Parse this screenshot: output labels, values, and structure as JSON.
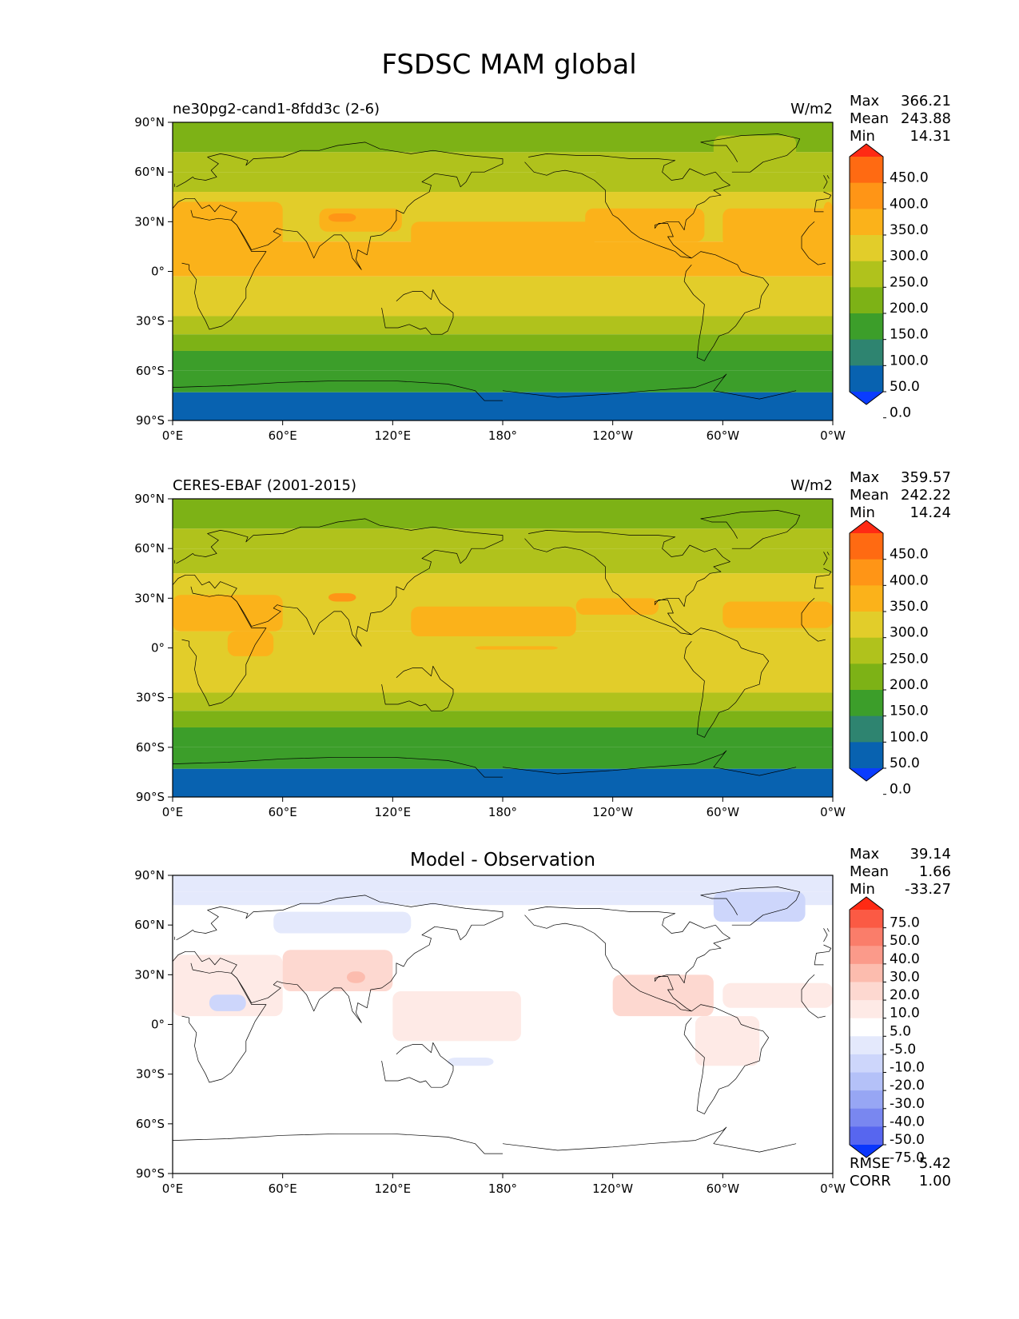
{
  "figure": {
    "title": "FSDSC MAM global"
  },
  "chart_data": [
    {
      "type": "heatmap",
      "title": "ne30pg2-cand1-8fdd3c (2-6)",
      "units": "W/m2",
      "stats": [
        {
          "label": "Max",
          "value": "366.21"
        },
        {
          "label": "Mean",
          "value": "243.88"
        },
        {
          "label": "Min",
          "value": "14.31"
        }
      ],
      "x_ticks": [
        "0°E",
        "60°E",
        "120°E",
        "180°",
        "120°W",
        "60°W",
        "0°W"
      ],
      "y_ticks": [
        "90°N",
        "60°N",
        "30°N",
        "0°",
        "30°S",
        "60°S",
        "90°S"
      ],
      "colorbar": {
        "levels": [
          "450.0",
          "400.0",
          "350.0",
          "300.0",
          "250.0",
          "200.0",
          "150.0",
          "100.0",
          "50.0",
          "0.0"
        ],
        "colors": [
          "#ff2a14",
          "#ff6a12",
          "#ff9516",
          "#fbb21a",
          "#e2cd2a",
          "#b0c21c",
          "#7db216",
          "#3c9e2a",
          "#2e8470",
          "#0862b0",
          "#0a3cff"
        ]
      },
      "zonal_bands": [
        {
          "lat": [
            90,
            72
          ],
          "value": 175
        },
        {
          "lat": [
            72,
            60
          ],
          "value": 215
        },
        {
          "lat": [
            60,
            48
          ],
          "value": 240
        },
        {
          "lat": [
            48,
            18
          ],
          "value": 285
        },
        {
          "lat": [
            18,
            -3
          ],
          "value": 310
        },
        {
          "lat": [
            -3,
            -27
          ],
          "value": 290
        },
        {
          "lat": [
            -27,
            -38
          ],
          "value": 245
        },
        {
          "lat": [
            -38,
            -48
          ],
          "value": 175
        },
        {
          "lat": [
            -48,
            -60
          ],
          "value": 140
        },
        {
          "lat": [
            -60,
            -73
          ],
          "value": 110
        },
        {
          "lat": [
            -73,
            -90
          ],
          "value": 25
        }
      ],
      "regional_patches": [
        {
          "lon": [
            355,
            60
          ],
          "lat": [
            42,
            5
          ],
          "value": 315
        },
        {
          "lon": [
            80,
            125
          ],
          "lat": [
            38,
            24
          ],
          "value": 320
        },
        {
          "lon": [
            85,
            100
          ],
          "lat": [
            35,
            30
          ],
          "value": 360
        },
        {
          "lon": [
            130,
            230
          ],
          "lat": [
            30,
            5
          ],
          "value": 315
        },
        {
          "lon": [
            225,
            290
          ],
          "lat": [
            38,
            18
          ],
          "value": 315
        },
        {
          "lon": [
            300,
            360
          ],
          "lat": [
            38,
            15
          ],
          "value": 310
        },
        {
          "lon": [
            230,
            300
          ],
          "lat": [
            62,
            48
          ],
          "value": 230
        },
        {
          "lon": [
            295,
            340
          ],
          "lat": [
            82,
            62
          ],
          "value": 215
        }
      ]
    },
    {
      "type": "heatmap",
      "title": "CERES-EBAF (2001-2015)",
      "units": "W/m2",
      "stats": [
        {
          "label": "Max",
          "value": "359.57"
        },
        {
          "label": "Mean",
          "value": "242.22"
        },
        {
          "label": "Min",
          "value": "14.24"
        }
      ],
      "x_ticks": [
        "0°E",
        "60°E",
        "120°E",
        "180°",
        "120°W",
        "60°W",
        "0°W"
      ],
      "y_ticks": [
        "90°N",
        "60°N",
        "30°N",
        "0°",
        "30°S",
        "60°S",
        "90°S"
      ],
      "colorbar": {
        "levels": [
          "450.0",
          "400.0",
          "350.0",
          "300.0",
          "250.0",
          "200.0",
          "150.0",
          "100.0",
          "50.0",
          "0.0"
        ],
        "colors": [
          "#ff2a14",
          "#ff6a12",
          "#ff9516",
          "#fbb21a",
          "#e2cd2a",
          "#b0c21c",
          "#7db216",
          "#3c9e2a",
          "#2e8470",
          "#0862b0",
          "#0a3cff"
        ]
      },
      "zonal_bands": [
        {
          "lat": [
            90,
            72
          ],
          "value": 175
        },
        {
          "lat": [
            72,
            60
          ],
          "value": 215
        },
        {
          "lat": [
            60,
            45
          ],
          "value": 245
        },
        {
          "lat": [
            45,
            10
          ],
          "value": 285
        },
        {
          "lat": [
            10,
            -27
          ],
          "value": 290
        },
        {
          "lat": [
            -27,
            -38
          ],
          "value": 245
        },
        {
          "lat": [
            -38,
            -48
          ],
          "value": 175
        },
        {
          "lat": [
            -48,
            -60
          ],
          "value": 140
        },
        {
          "lat": [
            -60,
            -73
          ],
          "value": 110
        },
        {
          "lat": [
            -73,
            -90
          ],
          "value": 25
        }
      ],
      "regional_patches": [
        {
          "lon": [
            0,
            60
          ],
          "lat": [
            32,
            10
          ],
          "value": 310
        },
        {
          "lon": [
            30,
            55
          ],
          "lat": [
            10,
            -5
          ],
          "value": 310
        },
        {
          "lon": [
            85,
            100
          ],
          "lat": [
            33,
            28
          ],
          "value": 355
        },
        {
          "lon": [
            130,
            220
          ],
          "lat": [
            25,
            7
          ],
          "value": 310
        },
        {
          "lon": [
            220,
            265
          ],
          "lat": [
            30,
            20
          ],
          "value": 305
        },
        {
          "lon": [
            300,
            360
          ],
          "lat": [
            28,
            12
          ],
          "value": 305
        },
        {
          "lon": [
            165,
            210
          ],
          "lat": [
            1,
            -1
          ],
          "value": 305
        }
      ]
    },
    {
      "type": "heatmap",
      "title": "Model - Observation",
      "stats": [
        {
          "label": "Max",
          "value": "39.14"
        },
        {
          "label": "Mean",
          "value": "1.66"
        },
        {
          "label": "Min",
          "value": "-33.27"
        }
      ],
      "extra_stats": [
        {
          "label": "RMSE",
          "value": "5.42"
        },
        {
          "label": "CORR",
          "value": "1.00"
        }
      ],
      "x_ticks": [
        "0°E",
        "60°E",
        "120°E",
        "180°",
        "120°W",
        "60°W",
        "0°W"
      ],
      "y_ticks": [
        "90°N",
        "60°N",
        "30°N",
        "0°",
        "30°S",
        "60°S",
        "90°S"
      ],
      "colorbar": {
        "levels": [
          "75.0",
          "50.0",
          "40.0",
          "30.0",
          "20.0",
          "10.0",
          "5.0",
          "-5.0",
          "-10.0",
          "-20.0",
          "-30.0",
          "-40.0",
          "-50.0",
          "-75.0"
        ],
        "colors": [
          "#ff2a14",
          "#fb5a44",
          "#fa7d6a",
          "#fb9a8a",
          "#fcbcae",
          "#fdd8d0",
          "#feeae6",
          "#ffffff",
          "#e4e9fc",
          "#cdd6fb",
          "#b4c1f8",
          "#97a6f4",
          "#7987f0",
          "#5766ef",
          "#0a36fc"
        ]
      },
      "zonal_bands": [
        {
          "lat": [
            90,
            80
          ],
          "value": -8
        },
        {
          "lat": [
            80,
            72
          ],
          "value": -6
        },
        {
          "lat": [
            72,
            -90
          ],
          "value": 0
        }
      ],
      "regional_patches": [
        {
          "lon": [
            295,
            345
          ],
          "lat": [
            80,
            62
          ],
          "value": -12
        },
        {
          "lon": [
            0,
            60
          ],
          "lat": [
            42,
            5
          ],
          "value": 8
        },
        {
          "lon": [
            60,
            120
          ],
          "lat": [
            45,
            20
          ],
          "value": 15
        },
        {
          "lon": [
            95,
            105
          ],
          "lat": [
            32,
            25
          ],
          "value": 25
        },
        {
          "lon": [
            20,
            40
          ],
          "lat": [
            18,
            8
          ],
          "value": -15
        },
        {
          "lon": [
            120,
            190
          ],
          "lat": [
            20,
            -10
          ],
          "value": 6
        },
        {
          "lon": [
            240,
            295
          ],
          "lat": [
            30,
            5
          ],
          "value": 10
        },
        {
          "lon": [
            300,
            360
          ],
          "lat": [
            25,
            10
          ],
          "value": 7
        },
        {
          "lon": [
            285,
            320
          ],
          "lat": [
            5,
            -25
          ],
          "value": 6
        },
        {
          "lon": [
            55,
            130
          ],
          "lat": [
            68,
            55
          ],
          "value": -6
        },
        {
          "lon": [
            150,
            175
          ],
          "lat": [
            -20,
            -25
          ],
          "value": -8
        }
      ]
    }
  ]
}
